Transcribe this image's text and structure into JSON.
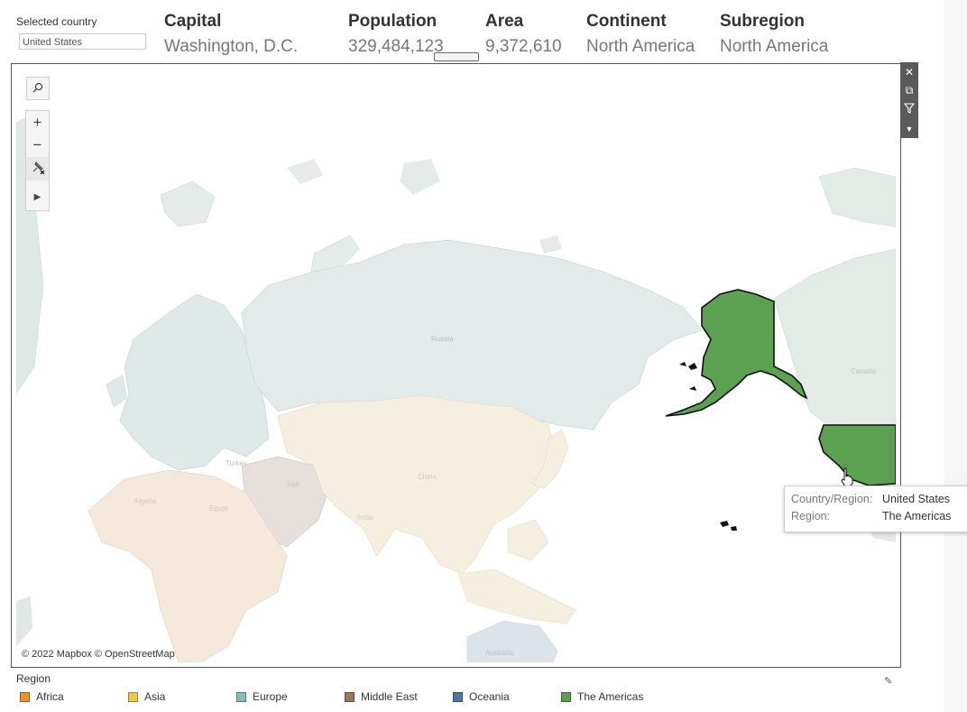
{
  "selector": {
    "label": "Selected country",
    "value": "United States"
  },
  "summary": {
    "columns": [
      {
        "header": "Capital",
        "value": "Washington, D.C."
      },
      {
        "header": "Population",
        "value": "329,484,123"
      },
      {
        "header": "Area",
        "value": "9,372,610"
      },
      {
        "header": "Continent",
        "value": "North America"
      },
      {
        "header": "Subregion",
        "value": "North America"
      }
    ]
  },
  "map": {
    "copyright": "© 2022 Mapbox © OpenStreetMap",
    "toolbar_icons": [
      "search-icon",
      "zoom-in-icon",
      "zoom-out-icon",
      "reset-pin-icon",
      "expand-arrow-icon"
    ],
    "side_icons": [
      "close-icon",
      "popout-icon",
      "filter-icon",
      "more-options-icon"
    ],
    "highlight_color": "#5ba151",
    "country_labels": [
      "Russia",
      "China",
      "India",
      "Iran",
      "Turkey",
      "Algeria",
      "Egypt",
      "Canada",
      "Australia"
    ]
  },
  "tooltip": {
    "rows": [
      {
        "key": "Country/Region:",
        "value": "United States"
      },
      {
        "key": "Region:",
        "value": "The Americas"
      }
    ]
  },
  "legend": {
    "title": "Region",
    "items": [
      {
        "label": "Africa",
        "color": "#f28e2b"
      },
      {
        "label": "Asia",
        "color": "#edc948"
      },
      {
        "label": "Europe",
        "color": "#86bcb6"
      },
      {
        "label": "Middle East",
        "color": "#9d7660"
      },
      {
        "label": "Oceania",
        "color": "#4e79a7"
      },
      {
        "label": "The Americas",
        "color": "#59a14f"
      }
    ]
  }
}
